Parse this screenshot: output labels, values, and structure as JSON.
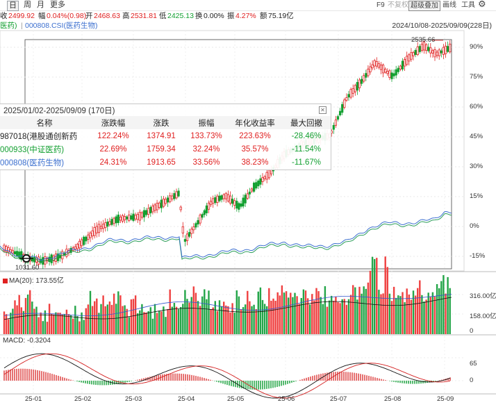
{
  "toolbar": {
    "periods": [
      "日",
      "周",
      "月",
      "更多"
    ],
    "f9": "F9",
    "restore": "不复权",
    "overlay": "超级叠加",
    "draw": "画线",
    "tools": "工具"
  },
  "quote": {
    "prefix": "收",
    "last": "2499.92",
    "chg_label": "幅",
    "chg": "0.04%(0.98)",
    "open_label": "开",
    "open": "2468.63",
    "high_label": "高",
    "high": "2531.81",
    "low_label": "低",
    "low": "2425.13",
    "turnover_label": "换",
    "turnover": "0.00%",
    "amp_label": "振",
    "amp": "4.27%",
    "amount_label": "额",
    "amount": "75.19亿"
  },
  "legend": {
    "item1": "医药)",
    "item2": "000808.CSI(医药生物)",
    "range": "2024/10/08-2025/09/09(228日)"
  },
  "annotations": {
    "high": "2535.66",
    "low": "1031.60"
  },
  "right_axis": [
    "90%",
    "75%",
    "60%",
    "45%",
    "30%",
    "15%",
    "0%",
    "-15%"
  ],
  "volume": {
    "label": "MA(20): 173.55亿",
    "ticks": [
      "316.00亿",
      "158.00亿",
      "0"
    ]
  },
  "macd": {
    "label": "MACD: -0.3204",
    "ticks": [
      "65",
      "0"
    ]
  },
  "x_axis": [
    "25-01",
    "25-02",
    "25-03",
    "25-04",
    "25-05",
    "25-06",
    "25-07",
    "25-08",
    "25-09"
  ],
  "table": {
    "title": "2025/01/02-2025/09/09 (170日)",
    "headers": [
      "名称",
      "涨跌幅",
      "涨跌",
      "振幅",
      "年化收益率",
      "最大回撤"
    ],
    "rows": [
      {
        "name": "987018(港股通创新药",
        "pct": "122.24%",
        "chg": "1374.91",
        "amp": "133.73%",
        "ann": "223.63%",
        "dd": "-28.46%"
      },
      {
        "name": "000933(中证医药)",
        "pct": "22.69%",
        "chg": "1759.34",
        "amp": "32.24%",
        "ann": "35.57%",
        "dd": "-11.54%"
      },
      {
        "name": "000808(医药生物)",
        "pct": "24.31%",
        "chg": "1913.65",
        "amp": "33.56%",
        "ann": "38.23%",
        "dd": "-11.67%"
      }
    ]
  },
  "colors": {
    "up": "#e02020",
    "down": "#13a031",
    "blue": "#3b6fcf",
    "macd": "#d42020"
  }
}
